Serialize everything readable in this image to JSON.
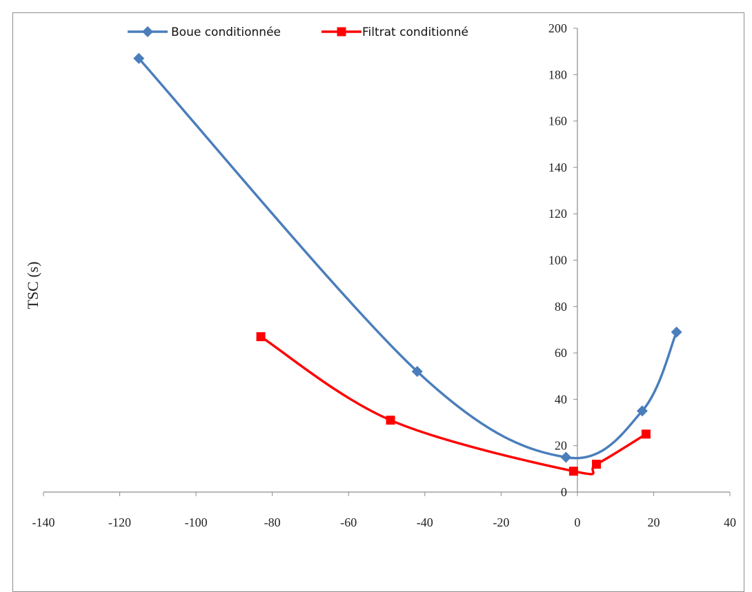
{
  "chart_data": {
    "type": "line",
    "title": "",
    "xlabel": "",
    "ylabel": "TSC (s)",
    "xlim": [
      -140,
      40
    ],
    "ylim": [
      0,
      200
    ],
    "x_ticks": [
      -140,
      -120,
      -100,
      -80,
      -60,
      -40,
      -20,
      0,
      20,
      40
    ],
    "y_ticks": [
      0,
      20,
      40,
      60,
      80,
      100,
      120,
      140,
      160,
      180,
      200
    ],
    "grid": false,
    "legend_position": "top",
    "smoothed": true,
    "series": [
      {
        "name": "Boue conditionnée",
        "color": "#4a7ebb",
        "marker": "diamond",
        "points": [
          {
            "x": -115,
            "y": 187
          },
          {
            "x": -42,
            "y": 52
          },
          {
            "x": -3,
            "y": 15
          },
          {
            "x": 17,
            "y": 35
          },
          {
            "x": 26,
            "y": 69
          }
        ]
      },
      {
        "name": "Filtrat conditionné",
        "color": "#ff0000",
        "marker": "square",
        "points": [
          {
            "x": -83,
            "y": 67
          },
          {
            "x": -49,
            "y": 31
          },
          {
            "x": -1,
            "y": 9
          },
          {
            "x": 5,
            "y": 12
          },
          {
            "x": 18,
            "y": 25
          }
        ]
      }
    ]
  }
}
